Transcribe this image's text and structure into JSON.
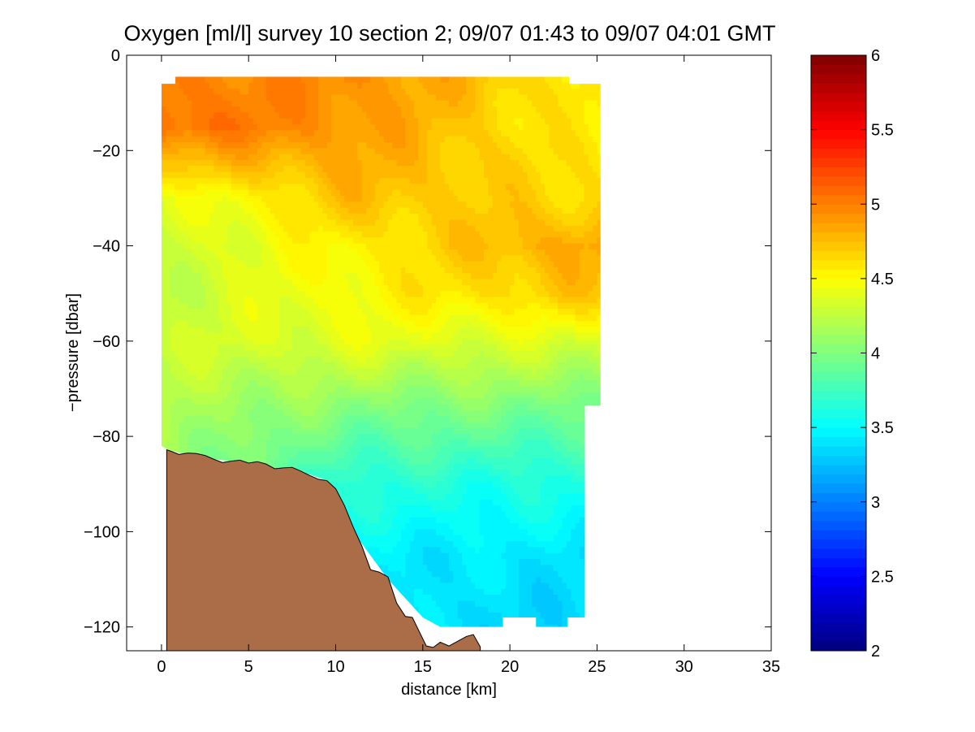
{
  "chart_data": {
    "type": "heatmap",
    "title": "Oxygen [ml/l] survey 10 section 2; 09/07 01:43 to 09/07 04:01 GMT",
    "xlabel": "distance [km]",
    "ylabel": "−pressure [dbar]",
    "xlim": [
      -2,
      35
    ],
    "ylim": [
      -125,
      0
    ],
    "x_ticks": [
      0,
      5,
      10,
      15,
      20,
      25,
      30,
      35
    ],
    "y_ticks": [
      0,
      -20,
      -40,
      -60,
      -80,
      -100,
      -120
    ],
    "x_tick_labels": [
      "0",
      "5",
      "10",
      "15",
      "20",
      "25",
      "30",
      "35"
    ],
    "y_tick_labels": [
      "0",
      "−20",
      "−40",
      "−60",
      "−80",
      "−100",
      "−120"
    ],
    "colorbar": {
      "colormap": "jet",
      "range": [
        2,
        6
      ],
      "ticks": [
        2,
        2.5,
        3,
        3.5,
        4,
        4.5,
        5,
        5.5,
        6
      ],
      "tick_labels": [
        "2",
        "2.5",
        "3",
        "3.5",
        "4",
        "4.5",
        "5",
        "5.5",
        "6"
      ]
    },
    "grid": false,
    "field_boundary": [
      [
        0,
        -6
      ],
      [
        0.8,
        -6
      ],
      [
        0.8,
        -4.5
      ],
      [
        23.4,
        -4.5
      ],
      [
        23.4,
        -6
      ],
      [
        25.2,
        -6
      ],
      [
        25.2,
        -73.5
      ],
      [
        24.3,
        -73.5
      ],
      [
        24.3,
        -118
      ],
      [
        23.3,
        -118
      ],
      [
        23.3,
        -120
      ],
      [
        21.5,
        -120
      ],
      [
        21.5,
        -118
      ],
      [
        19.6,
        -118
      ],
      [
        19.6,
        -120
      ],
      [
        16,
        -120
      ],
      [
        15,
        -118
      ],
      [
        13,
        -110
      ],
      [
        11,
        -100
      ],
      [
        9.3,
        -89
      ],
      [
        8.5,
        -88
      ],
      [
        6.5,
        -87
      ],
      [
        4.5,
        -85.5
      ],
      [
        2.5,
        -84.5
      ],
      [
        1.8,
        -84
      ],
      [
        0.5,
        -83
      ],
      [
        0,
        -82
      ]
    ],
    "seafloor_profile": [
      [
        0.3,
        -82.8
      ],
      [
        0.6,
        -83.2
      ],
      [
        1,
        -83.8
      ],
      [
        1.5,
        -83.5
      ],
      [
        2,
        -83.6
      ],
      [
        2.5,
        -84
      ],
      [
        3,
        -84.8
      ],
      [
        3.5,
        -85.5
      ],
      [
        4,
        -85.2
      ],
      [
        4.5,
        -85
      ],
      [
        5,
        -85.6
      ],
      [
        5.5,
        -85.3
      ],
      [
        6,
        -85.8
      ],
      [
        6.5,
        -86.8
      ],
      [
        7,
        -86.6
      ],
      [
        7.5,
        -86.5
      ],
      [
        8,
        -87.3
      ],
      [
        8.5,
        -88.2
      ],
      [
        9,
        -89
      ],
      [
        9.5,
        -89.3
      ],
      [
        10,
        -91
      ],
      [
        10.5,
        -94.5
      ],
      [
        11,
        -99
      ],
      [
        11.5,
        -103
      ],
      [
        12,
        -108
      ],
      [
        12.5,
        -108.5
      ],
      [
        13,
        -109.5
      ],
      [
        13.5,
        -115
      ],
      [
        14,
        -117.8
      ],
      [
        14.4,
        -118
      ],
      [
        14.8,
        -121
      ],
      [
        15.2,
        -124
      ],
      [
        15.6,
        -124.3
      ],
      [
        16,
        -123.2
      ],
      [
        16.5,
        -124
      ],
      [
        17,
        -123
      ],
      [
        17.5,
        -122
      ],
      [
        17.9,
        -121.6
      ],
      [
        18.3,
        -124.2
      ]
    ],
    "oxygen_by_depth": [
      {
        "depth": -5,
        "surface_layer": 5.0,
        "mid_section": 4.95,
        "eastern_stations": 4.6
      },
      {
        "depth": -15,
        "surface_layer": 5.1,
        "mid_section": 4.9,
        "eastern_stations": 4.55
      },
      {
        "depth": -30,
        "surface_layer": 4.35,
        "mid_section": 4.75,
        "eastern_stations": 4.65
      },
      {
        "depth": -40,
        "surface_layer": 4.3,
        "mid_section": 4.55,
        "eastern_stations": 4.85
      },
      {
        "depth": -50,
        "surface_layer": 4.25,
        "mid_section": 4.5,
        "eastern_stations": 4.7
      },
      {
        "depth": -60,
        "surface_layer": 4.3,
        "mid_section": 4.4,
        "eastern_stations": 4.35
      },
      {
        "depth": -75,
        "surface_layer": 4.2,
        "mid_section": 4.0,
        "eastern_stations": 3.95
      },
      {
        "depth": -90,
        "surface_layer": 4.1,
        "mid_section": 3.65,
        "eastern_stations": 3.6
      },
      {
        "depth": -105,
        "surface_layer": 3.85,
        "mid_section": 3.45,
        "eastern_stations": 3.4
      },
      {
        "depth": -118,
        "surface_layer": 3.7,
        "mid_section": 3.4,
        "eastern_stations": 3.35
      }
    ],
    "colors": {
      "seafloor": "#ab6c48",
      "axes": "#000000",
      "background": "#ffffff"
    }
  }
}
